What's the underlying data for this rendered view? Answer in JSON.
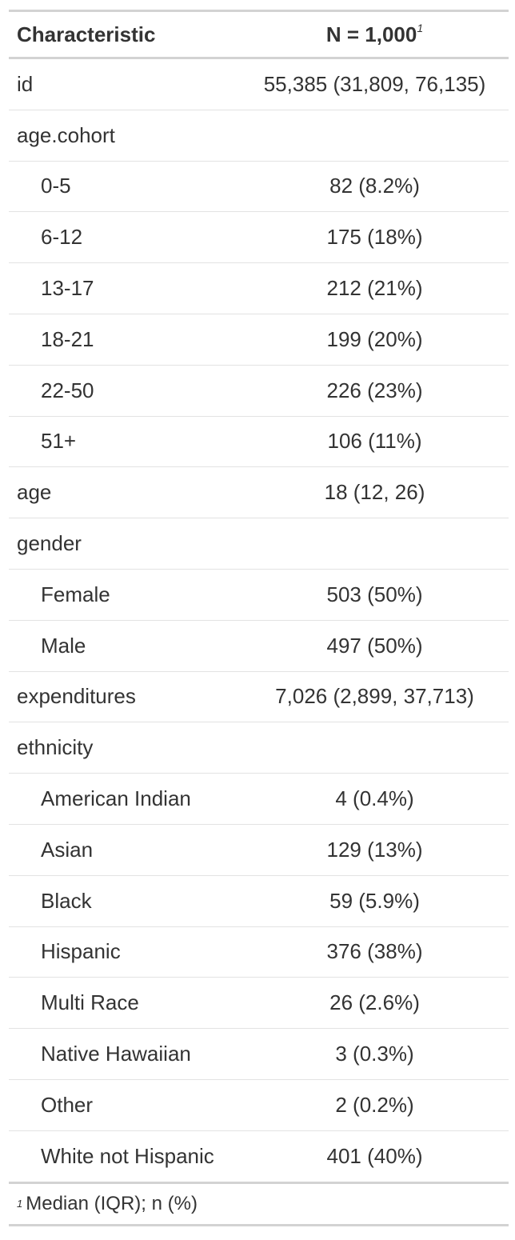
{
  "table": {
    "header": {
      "characteristic": "Characteristic",
      "n_label": "N = 1,000",
      "n_footnote_mark": "1"
    },
    "rows": [
      {
        "label": "id",
        "value": "55,385 (31,809, 76,135)"
      },
      {
        "label": "age.cohort",
        "value": ""
      },
      {
        "label": "0-5",
        "value": "82 (8.2%)"
      },
      {
        "label": "6-12",
        "value": "175 (18%)"
      },
      {
        "label": "13-17",
        "value": "212 (21%)"
      },
      {
        "label": "18-21",
        "value": "199 (20%)"
      },
      {
        "label": "22-50",
        "value": "226 (23%)"
      },
      {
        "label": "51+",
        "value": "106 (11%)"
      },
      {
        "label": "age",
        "value": "18 (12, 26)"
      },
      {
        "label": "gender",
        "value": ""
      },
      {
        "label": "Female",
        "value": "503 (50%)"
      },
      {
        "label": "Male",
        "value": "497 (50%)"
      },
      {
        "label": "expenditures",
        "value": "7,026 (2,899, 37,713)"
      },
      {
        "label": "ethnicity",
        "value": ""
      },
      {
        "label": "American Indian",
        "value": "4 (0.4%)"
      },
      {
        "label": "Asian",
        "value": "129 (13%)"
      },
      {
        "label": "Black",
        "value": "59 (5.9%)"
      },
      {
        "label": "Hispanic",
        "value": "376 (38%)"
      },
      {
        "label": "Multi Race",
        "value": "26 (2.6%)"
      },
      {
        "label": "Native Hawaiian",
        "value": "3 (0.3%)"
      },
      {
        "label": "Other",
        "value": "2 (0.2%)"
      },
      {
        "label": "White not Hispanic",
        "value": "401 (40%)"
      }
    ],
    "footnote": {
      "mark": "1",
      "text": "Median (IQR); n (%)"
    }
  }
}
